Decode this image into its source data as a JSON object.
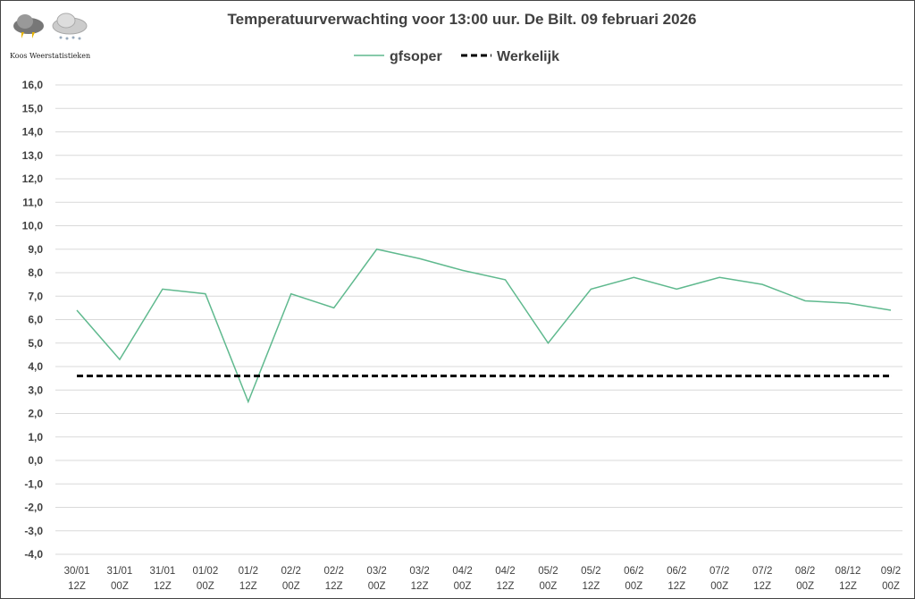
{
  "logo": {
    "text": "Koos Weerstatistieken",
    "icons": [
      "thunderstorm-cloud-icon",
      "snow-cloud-icon"
    ]
  },
  "chart_data": {
    "type": "line",
    "title": "Temperatuurverwachting voor 13:00 uur. De Bilt. 09 februari 2026",
    "xlabel": "",
    "ylabel": "",
    "ylim": [
      -4,
      16
    ],
    "yticks": [
      "16,0",
      "15,0",
      "14,0",
      "13,0",
      "12,0",
      "11,0",
      "10,0",
      "9,0",
      "8,0",
      "7,0",
      "6,0",
      "5,0",
      "4,0",
      "3,0",
      "2,0",
      "1,0",
      "0,0",
      "-1,0",
      "-2,0",
      "-3,0",
      "-4,0"
    ],
    "grid": true,
    "legend_position": "top-center",
    "categories": [
      [
        "30/01",
        "12Z"
      ],
      [
        "31/01",
        "00Z"
      ],
      [
        "31/01",
        "12Z"
      ],
      [
        "01/02",
        "00Z"
      ],
      [
        "01/2",
        "12Z"
      ],
      [
        "02/2",
        "00Z"
      ],
      [
        "02/2",
        "12Z"
      ],
      [
        "03/2",
        "00Z"
      ],
      [
        "03/2",
        "12Z"
      ],
      [
        "04/2",
        "00Z"
      ],
      [
        "04/2",
        "12Z"
      ],
      [
        "05/2",
        "00Z"
      ],
      [
        "05/2",
        "12Z"
      ],
      [
        "06/2",
        "00Z"
      ],
      [
        "06/2",
        "12Z"
      ],
      [
        "07/2",
        "00Z"
      ],
      [
        "07/2",
        "12Z"
      ],
      [
        "08/2",
        "00Z"
      ],
      [
        "08/12",
        "12Z"
      ],
      [
        "09/2",
        "00Z"
      ]
    ],
    "series": [
      {
        "name": "gfsoper",
        "color": "#5fb98e",
        "style": "solid",
        "values": [
          6.4,
          4.3,
          7.3,
          7.1,
          2.5,
          7.1,
          6.5,
          9.0,
          8.6,
          8.1,
          7.7,
          5.0,
          7.3,
          7.8,
          7.3,
          7.8,
          7.5,
          6.8,
          6.7,
          6.4
        ]
      },
      {
        "name": "Werkelijk",
        "color": "#000000",
        "style": "dashed",
        "values": [
          3.6,
          3.6,
          3.6,
          3.6,
          3.6,
          3.6,
          3.6,
          3.6,
          3.6,
          3.6,
          3.6,
          3.6,
          3.6,
          3.6,
          3.6,
          3.6,
          3.6,
          3.6,
          3.6,
          3.6
        ]
      }
    ]
  }
}
